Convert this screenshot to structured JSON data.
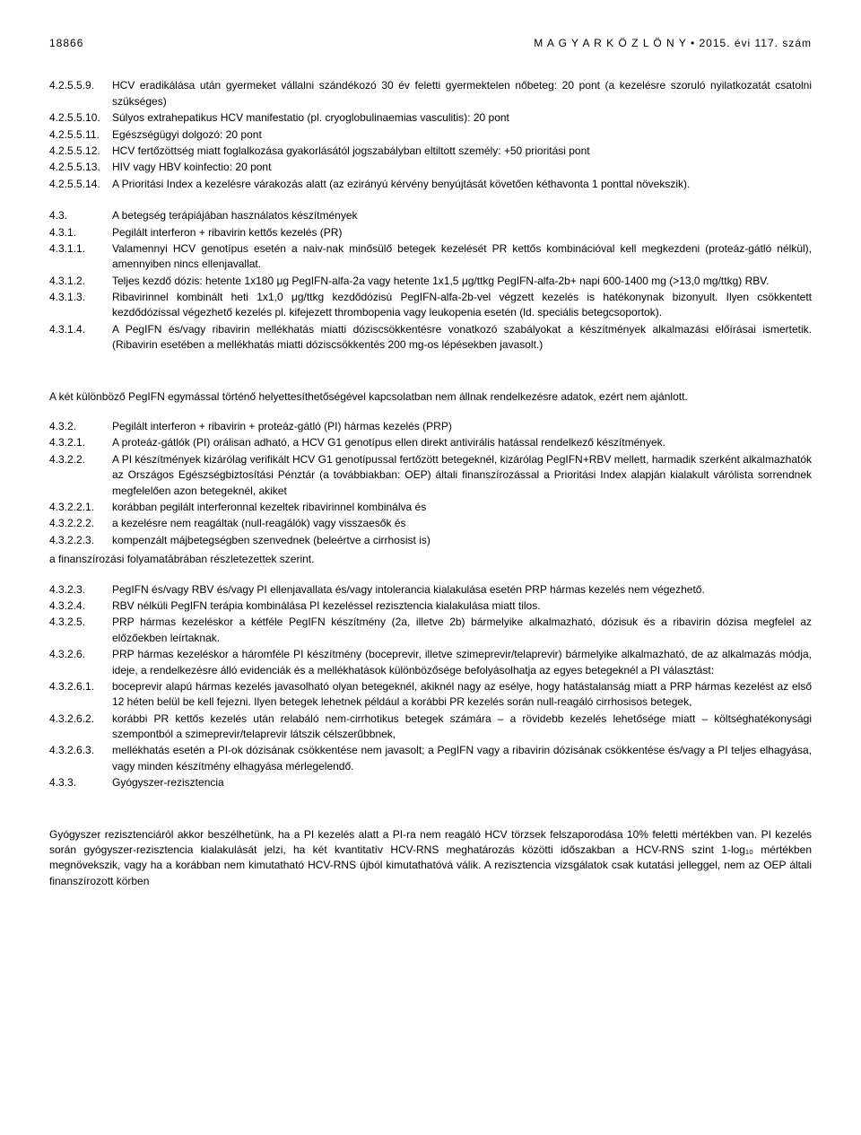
{
  "header": {
    "page_number": "18866",
    "publication": "M A G Y A R   K Ö Z L Ö N Y  •  2015. évi 117. szám"
  },
  "block1": [
    {
      "k": "4.2.5.5.9.",
      "v": "HCV eradikálása után gyermeket vállalni szándékozó 30 év feletti gyermektelen nőbeteg: 20 pont (a kezelésre szoruló nyilatkozatát csatolni szükséges)"
    },
    {
      "k": "4.2.5.5.10.",
      "v": "Súlyos extrahepatikus HCV manifestatio (pl. cryoglobulinaemias vasculitis): 20 pont"
    },
    {
      "k": "4.2.5.5.11.",
      "v": "Egészségügyi dolgozó: 20 pont"
    },
    {
      "k": "4.2.5.5.12.",
      "v": "HCV fertőzöttség miatt foglalkozása gyakorlásától jogszabályban eltiltott személy: +50 prioritási pont"
    },
    {
      "k": "4.2.5.5.13.",
      "v": "HIV vagy HBV koinfectio: 20 pont"
    },
    {
      "k": "4.2.5.5.14.",
      "v": "A Prioritási Index a kezelésre várakozás alatt (az ezirányú kérvény benyújtását követően kéthavonta 1 ponttal növekszik)."
    }
  ],
  "block2": [
    {
      "k": "4.3.",
      "v": "A betegség terápiájában használatos készítmények"
    },
    {
      "k": "4.3.1.",
      "v": "Pegilált interferon + ribavirin kettős kezelés (PR)"
    },
    {
      "k": "4.3.1.1.",
      "v": "Valamennyi HCV genotípus esetén a naiv-nak minősülő betegek kezelését PR kettős kombinációval kell megkezdeni (proteáz-gátló nélkül), amennyiben nincs ellenjavallat."
    },
    {
      "k": "4.3.1.2.",
      "v": "Teljes kezdő dózis: hetente 1x180 μg PegIFN-alfa-2a vagy hetente 1x1,5 μg/ttkg PegIFN-alfa-2b+ napi 600-1400 mg (>13,0 mg/ttkg) RBV."
    },
    {
      "k": "4.3.1.3.",
      "v": "Ribavirinnel kombinált heti 1x1,0 μg/ttkg kezdődózisú PegIFN-alfa-2b-vel végzett kezelés is hatékonynak bizonyult. Ilyen csökkentett kezdődózissal végezhető kezelés pl. kifejezett thrombopenia vagy leukopenia esetén (ld. speciális betegcsoportok)."
    },
    {
      "k": "4.3.1.4.",
      "v": "A PegIFN és/vagy ribavirin mellékhatás miatti dóziscsökkentésre vonatkozó szabályokat a készítmények alkalmazási előírásai ismertetik. (Ribavirin esetében a mellékhatás miatti dóziscsökkentés 200 mg-os lépésekben javasolt.)"
    }
  ],
  "para1": "A két különböző PegIFN egymással történő helyettesíthetőségével kapcsolatban nem állnak rendelkezésre adatok, ezért nem ajánlott.",
  "block3": [
    {
      "k": "4.3.2.",
      "v": "Pegilált interferon + ribavirin + proteáz-gátló (PI) hármas kezelés (PRP)"
    },
    {
      "k": "4.3.2.1.",
      "v": "A proteáz-gátlók (PI) orálisan adható, a HCV G1 genotípus ellen direkt antivirális hatással rendelkező készítmények."
    },
    {
      "k": "4.3.2.2.",
      "v": "A PI készítmények kizárólag verifikált HCV G1 genotípussal fertőzött betegeknél, kizárólag PegIFN+RBV mellett, harmadik szerként alkalmazhatók az Országos Egészségbiztosítási Pénztár (a továbbiakban: OEP) általi finanszírozással a Prioritási Index alapján kialakult várólista sorrendnek megfelelően azon betegeknél, akiket"
    },
    {
      "k": "4.3.2.2.1.",
      "v": "korábban pegilált interferonnal kezeltek ribavirinnel kombinálva és"
    },
    {
      "k": "4.3.2.2.2.",
      "v": "a kezelésre nem reagáltak (null-reagálók) vagy visszaesők és"
    },
    {
      "k": "4.3.2.2.3.",
      "v": "kompenzált májbetegségben szenvednek (beleértve a cirrhosist is)"
    }
  ],
  "line_after_block3": "a finanszírozási folyamatábrában részletezettek szerint.",
  "block4": [
    {
      "k": "4.3.2.3.",
      "v": "PegIFN és/vagy RBV és/vagy PI ellenjavallata és/vagy intolerancia kialakulása esetén PRP hármas kezelés nem végezhető."
    },
    {
      "k": "4.3.2.4.",
      "v": "RBV nélküli PegIFN terápia kombinálása PI kezeléssel rezisztencia kialakulása miatt tilos."
    },
    {
      "k": "4.3.2.5.",
      "v": "PRP hármas kezeléskor a kétféle PegIFN készítmény (2a, illetve 2b) bármelyike alkalmazható, dózisuk és a ribavirin dózisa megfelel az előzőekben leírtaknak."
    },
    {
      "k": "4.3.2.6.",
      "v": "PRP hármas kezeléskor a háromféle PI készítmény (boceprevir, illetve szimeprevir/telaprevir) bármelyike alkalmazható, de az alkalmazás módja, ideje, a rendelkezésre álló evidenciák és a mellékhatások különbözősége befolyásolhatja az egyes betegeknél a PI választást:"
    },
    {
      "k": "4.3.2.6.1.",
      "v": "boceprevir alapú hármas kezelés javasolható olyan betegeknél, akiknél nagy az esélye, hogy hatástalanság miatt a PRP hármas kezelést az első 12 héten belül be kell fejezni. Ilyen betegek lehetnek például a korábbi PR kezelés során null-reagáló cirrhosisos betegek,"
    },
    {
      "k": "4.3.2.6.2.",
      "v": "korábbi PR kettős kezelés után relabáló nem-cirrhotikus betegek számára – a rövidebb kezelés lehetősége miatt – költséghatékonysági szempontból a szimeprevir/telaprevir látszik célszerűbbnek,"
    },
    {
      "k": "4.3.2.6.3.",
      "v": "mellékhatás esetén a PI-ok dózisának csökkentése nem javasolt; a PegIFN vagy a ribavirin dózisának csökkentése és/vagy a PI teljes elhagyása, vagy minden készítmény elhagyása mérlegelendő."
    },
    {
      "k": "4.3.3.",
      "v": "Gyógyszer-rezisztencia"
    }
  ],
  "para2": "Gyógyszer rezisztenciáról akkor beszélhetünk, ha a PI kezelés alatt a PI-ra nem reagáló HCV törzsek felszaporodása 10% feletti mértékben van. PI kezelés során gyógyszer-rezisztencia kialakulását jelzi, ha két kvantitatív HCV-RNS meghatározás közötti időszakban a HCV-RNS szint 1-log₁₀ mértékben megnövekszik, vagy ha a korábban nem kimutatható HCV-RNS újból kimutathatóvá válik. A rezisztencia vizsgálatok csak kutatási jelleggel, nem az OEP általi finanszírozott körben"
}
